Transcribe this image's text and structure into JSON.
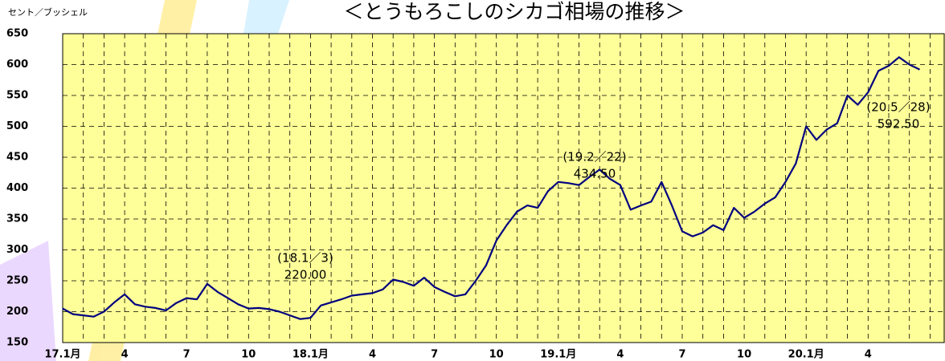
{
  "chart_data": {
    "type": "line",
    "title": "＜とうもろこしのシカゴ相場の推移＞",
    "y_label": "セント／ブッシェル",
    "categories": [
      "17.1月",
      null,
      null,
      null,
      null,
      null,
      "4",
      null,
      null,
      null,
      null,
      null,
      "7",
      null,
      null,
      null,
      null,
      null,
      "10",
      null,
      null,
      null,
      null,
      null,
      "18.1月",
      null,
      null,
      null,
      null,
      null,
      "4",
      null,
      null,
      null,
      null,
      null,
      "7",
      null,
      null,
      null,
      null,
      null,
      "10",
      null,
      null,
      null,
      null,
      null,
      "19.1月",
      null,
      null,
      null,
      null,
      null,
      "4",
      null,
      null,
      null,
      null,
      null,
      "7",
      null,
      null,
      null,
      null,
      null,
      "10",
      null,
      null,
      null,
      null,
      null,
      "20.1月",
      null,
      null,
      null,
      null,
      null,
      "4",
      null,
      null,
      null,
      null,
      null,
      null,
      null
    ],
    "series": [
      {
        "color": "#000080",
        "values": [
          205,
          196,
          194,
          192,
          200,
          215,
          228,
          212,
          208,
          206,
          202,
          214,
          222,
          220,
          245,
          232,
          222,
          212,
          205,
          206,
          204,
          200,
          194,
          188,
          190,
          210,
          215,
          220,
          226,
          228,
          230,
          236,
          252,
          248,
          242,
          255,
          240,
          232,
          225,
          228,
          250,
          275,
          315,
          340,
          362,
          372,
          368,
          395,
          410,
          408,
          405,
          418,
          430,
          415,
          405,
          365,
          372,
          378,
          410,
          372,
          330,
          322,
          328,
          340,
          332,
          368,
          352,
          362,
          375,
          385,
          410,
          440,
          500,
          478,
          495,
          505,
          550,
          535,
          555,
          590,
          598,
          612,
          600,
          592,
          null,
          null
        ]
      }
    ],
    "ylim": [
      150,
      650
    ],
    "yticks": [
      150,
      200,
      250,
      300,
      350,
      400,
      450,
      500,
      550,
      600,
      650
    ],
    "grid": true,
    "plot_background": "#ffff99",
    "annotations": [
      {
        "label": "(18.1／3)",
        "value": "220.00"
      },
      {
        "label": "(19.2／22)",
        "value": "434.50"
      },
      {
        "label": "(20.5／28)",
        "value": "592.50"
      }
    ]
  }
}
